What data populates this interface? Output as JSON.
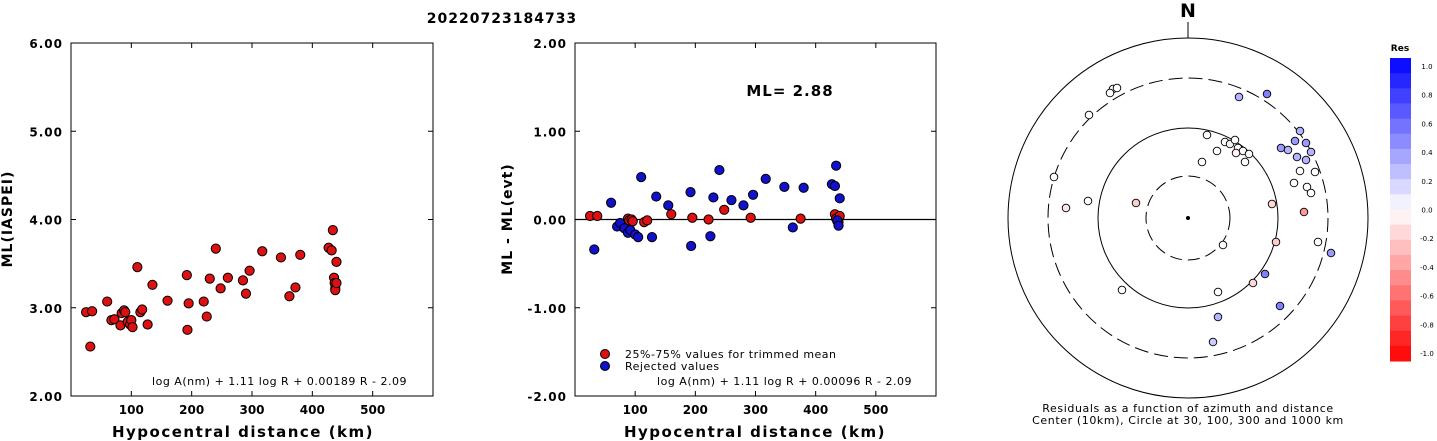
{
  "figure_title": "20220723184733",
  "chart_data": [
    {
      "type": "scatter",
      "title": "",
      "xlabel": "Hypocentral distance (km)",
      "ylabel": "ML(IASPEI)",
      "xlim": [
        0,
        600
      ],
      "ylim": [
        2.0,
        6.0
      ],
      "x_ticks": [
        "100",
        "200",
        "300",
        "400",
        "500"
      ],
      "y_ticks": [
        "2.00",
        "3.00",
        "4.00",
        "5.00",
        "6.00"
      ],
      "formula": "log A(nm) + 1.11 log R + 0.00189 R - 2.09",
      "series": [
        {
          "color": "#dd1111",
          "points": [
            [
              25,
              2.95
            ],
            [
              32,
              2.56
            ],
            [
              35,
              2.96
            ],
            [
              60,
              3.07
            ],
            [
              67,
              2.86
            ],
            [
              72,
              2.87
            ],
            [
              82,
              2.8
            ],
            [
              84,
              2.94
            ],
            [
              88,
              2.97
            ],
            [
              90,
              2.95
            ],
            [
              94,
              2.84
            ],
            [
              98,
              2.81
            ],
            [
              100,
              2.86
            ],
            [
              102,
              2.78
            ],
            [
              110,
              3.46
            ],
            [
              115,
              2.95
            ],
            [
              118,
              2.98
            ],
            [
              127,
              2.81
            ],
            [
              135,
              3.26
            ],
            [
              160,
              3.08
            ],
            [
              192,
              3.37
            ],
            [
              193,
              2.75
            ],
            [
              195,
              3.05
            ],
            [
              220,
              3.07
            ],
            [
              225,
              2.9
            ],
            [
              230,
              3.33
            ],
            [
              240,
              3.67
            ],
            [
              248,
              3.22
            ],
            [
              260,
              3.34
            ],
            [
              285,
              3.31
            ],
            [
              290,
              3.16
            ],
            [
              296,
              3.42
            ],
            [
              317,
              3.64
            ],
            [
              348,
              3.57
            ],
            [
              362,
              3.13
            ],
            [
              372,
              3.23
            ],
            [
              380,
              3.6
            ],
            [
              427,
              3.68
            ],
            [
              432,
              3.65
            ],
            [
              434,
              3.88
            ],
            [
              436,
              3.34
            ],
            [
              437,
              3.28
            ],
            [
              438,
              3.22
            ],
            [
              438,
              3.2
            ],
            [
              440,
              3.52
            ],
            [
              440,
              3.28
            ]
          ]
        }
      ]
    },
    {
      "type": "scatter",
      "title": "",
      "xlabel": "Hypocentral distance (km)",
      "ylabel": "ML - ML(evt)",
      "xlim": [
        0,
        600
      ],
      "ylim": [
        -2.0,
        2.0
      ],
      "x_ticks": [
        "100",
        "200",
        "300",
        "400",
        "500"
      ],
      "y_ticks": [
        "-2.00",
        "-1.00",
        "0.00",
        "1.00",
        "2.00"
      ],
      "reference_line": 0,
      "annotation": "ML= 2.88",
      "formula": "log A(nm) + 1.11 log R + 0.00096 R - 2.09",
      "series": [
        {
          "name": "25%-75% values for trimmed mean",
          "color": "#dd1111",
          "points": [
            [
              25,
              0.04
            ],
            [
              37,
              0.04
            ],
            [
              88,
              0.01
            ],
            [
              90,
              -0.01
            ],
            [
              94,
              0.0
            ],
            [
              96,
              -0.02
            ],
            [
              115,
              -0.03
            ],
            [
              120,
              -0.01
            ],
            [
              160,
              0.06
            ],
            [
              195,
              0.02
            ],
            [
              222,
              0.0
            ],
            [
              248,
              0.11
            ],
            [
              292,
              0.02
            ],
            [
              375,
              0.01
            ],
            [
              432,
              0.06
            ],
            [
              434,
              0.01
            ],
            [
              436,
              -0.02
            ],
            [
              438,
              -0.03
            ],
            [
              440,
              0.04
            ]
          ]
        },
        {
          "name": "Rejected values",
          "color": "#1111cc",
          "points": [
            [
              32,
              -0.34
            ],
            [
              60,
              0.19
            ],
            [
              70,
              -0.08
            ],
            [
              75,
              -0.04
            ],
            [
              82,
              -0.1
            ],
            [
              88,
              -0.15
            ],
            [
              92,
              -0.12
            ],
            [
              100,
              -0.17
            ],
            [
              105,
              -0.2
            ],
            [
              110,
              0.48
            ],
            [
              128,
              -0.2
            ],
            [
              135,
              0.26
            ],
            [
              155,
              0.16
            ],
            [
              192,
              0.31
            ],
            [
              193,
              -0.3
            ],
            [
              225,
              -0.19
            ],
            [
              230,
              0.25
            ],
            [
              240,
              0.56
            ],
            [
              260,
              0.22
            ],
            [
              280,
              0.16
            ],
            [
              296,
              0.28
            ],
            [
              317,
              0.46
            ],
            [
              348,
              0.37
            ],
            [
              362,
              -0.09
            ],
            [
              380,
              0.36
            ],
            [
              427,
              0.4
            ],
            [
              432,
              0.38
            ],
            [
              434,
              0.61
            ],
            [
              436,
              -0.01
            ],
            [
              438,
              -0.07
            ],
            [
              440,
              0.24
            ]
          ]
        }
      ]
    },
    {
      "type": "polar_scatter",
      "north_label": "N",
      "caption_line1": "Residuals as a function of azimuth and distance",
      "caption_line2": "Center (10km), Circle at 30, 100, 300 and 1000 km",
      "legend_title": "Res",
      "color_scale_labels": [
        "1.0",
        "0.8",
        "0.6",
        "0.4",
        "0.2",
        "0.0",
        "-0.2",
        "-0.4",
        "-0.6",
        "-0.8",
        "-1.0"
      ],
      "color_scale_min": -1.0,
      "color_scale_max": 1.0,
      "points": [
        {
          "x": -75,
          "y": 129,
          "res": 0.0
        },
        {
          "x": -71,
          "y": 130,
          "res": 0.0
        },
        {
          "x": -78,
          "y": 125,
          "res": 0.0
        },
        {
          "x": 51,
          "y": 121,
          "res": 0.3
        },
        {
          "x": 79,
          "y": 124,
          "res": 0.5
        },
        {
          "x": -99,
          "y": 103,
          "res": 0.0
        },
        {
          "x": 19,
          "y": 83,
          "res": 0.0
        },
        {
          "x": 37,
          "y": 76,
          "res": 0.0
        },
        {
          "x": 42,
          "y": 74,
          "res": 0.05
        },
        {
          "x": 47,
          "y": 78,
          "res": 0.0
        },
        {
          "x": 50,
          "y": 70,
          "res": 0.0
        },
        {
          "x": 55,
          "y": 67,
          "res": 0.0
        },
        {
          "x": 61,
          "y": 64,
          "res": 0.0
        },
        {
          "x": 57,
          "y": 56,
          "res": 0.0
        },
        {
          "x": 48,
          "y": 65,
          "res": -0.05
        },
        {
          "x": 29,
          "y": 67,
          "res": 0.0
        },
        {
          "x": 14,
          "y": 56,
          "res": 0.0
        },
        {
          "x": 112,
          "y": 87,
          "res": 0.3
        },
        {
          "x": 107,
          "y": 77,
          "res": 0.4
        },
        {
          "x": 118,
          "y": 75,
          "res": 0.4
        },
        {
          "x": 93,
          "y": 70,
          "res": 0.4
        },
        {
          "x": 100,
          "y": 68,
          "res": 0.3
        },
        {
          "x": 109,
          "y": 61,
          "res": 0.3
        },
        {
          "x": 123,
          "y": 66,
          "res": 0.3
        },
        {
          "x": 118,
          "y": 58,
          "res": 0.3
        },
        {
          "x": 127,
          "y": 46,
          "res": 0.0
        },
        {
          "x": 112,
          "y": 47,
          "res": 0.0
        },
        {
          "x": 119,
          "y": 31,
          "res": 0.0
        },
        {
          "x": 106,
          "y": 35,
          "res": 0.0
        },
        {
          "x": 123,
          "y": 25,
          "res": 0.0
        },
        {
          "x": -134,
          "y": 41,
          "res": 0.0
        },
        {
          "x": -122,
          "y": 10,
          "res": -0.1
        },
        {
          "x": -100,
          "y": 17,
          "res": 0.0
        },
        {
          "x": -52,
          "y": 15,
          "res": -0.2
        },
        {
          "x": 84,
          "y": 14,
          "res": -0.15
        },
        {
          "x": 116,
          "y": 6,
          "res": -0.4
        },
        {
          "x": 88,
          "y": -24,
          "res": -0.2
        },
        {
          "x": 130,
          "y": -24,
          "res": 0.0
        },
        {
          "x": 143,
          "y": -35,
          "res": 0.4
        },
        {
          "x": 35,
          "y": -27,
          "res": 0.0
        },
        {
          "x": 77,
          "y": -56,
          "res": 0.5
        },
        {
          "x": 65,
          "y": -65,
          "res": -0.15
        },
        {
          "x": 30,
          "y": -74,
          "res": 0.0
        },
        {
          "x": -66,
          "y": -72,
          "res": 0.0
        },
        {
          "x": 92,
          "y": -88,
          "res": 0.5
        },
        {
          "x": 30,
          "y": -99,
          "res": 0.3
        },
        {
          "x": 25,
          "y": -124,
          "res": 0.2
        }
      ]
    }
  ]
}
